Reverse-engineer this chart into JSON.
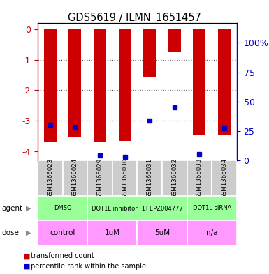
{
  "title": "GDS5619 / ILMN_1651457",
  "samples": [
    "GSM1366023",
    "GSM1366024",
    "GSM1366029",
    "GSM1366030",
    "GSM1366031",
    "GSM1366032",
    "GSM1366033",
    "GSM1366034"
  ],
  "bar_values": [
    -3.7,
    -3.55,
    -3.7,
    -3.65,
    -1.55,
    -0.72,
    -3.45,
    -3.45
  ],
  "percentile_values": [
    30,
    28,
    4,
    3,
    34,
    45,
    5,
    27
  ],
  "ylim_left": [
    -4.3,
    0.2
  ],
  "ylim_right": [
    0,
    116.67
  ],
  "yticks_left": [
    0,
    -1,
    -2,
    -3,
    -4
  ],
  "yticks_right": [
    0,
    25,
    50,
    75,
    100
  ],
  "ytick_labels_right": [
    "0",
    "25",
    "50",
    "75",
    "100%"
  ],
  "bar_color": "#cc0000",
  "dot_color": "#0000cc",
  "left_tick_color": "#cc0000",
  "right_tick_color": "#0000cc",
  "sample_col_color": "#cccccc",
  "agent_groups": [
    {
      "text": "DMSO",
      "start": 0,
      "end": 1,
      "color": "#99ff99"
    },
    {
      "text": "DOT1L inhibitor [1] EPZ004777",
      "start": 2,
      "end": 5,
      "color": "#99ff99"
    },
    {
      "text": "DOT1L siRNA",
      "start": 6,
      "end": 7,
      "color": "#99ff99"
    }
  ],
  "dose_groups": [
    {
      "text": "control",
      "start": 0,
      "end": 1,
      "color": "#ff99ff"
    },
    {
      "text": "1uM",
      "start": 2,
      "end": 3,
      "color": "#ff99ff"
    },
    {
      "text": "5uM",
      "start": 4,
      "end": 5,
      "color": "#ff99ff"
    },
    {
      "text": "n/a",
      "start": 6,
      "end": 7,
      "color": "#ff99ff"
    }
  ]
}
